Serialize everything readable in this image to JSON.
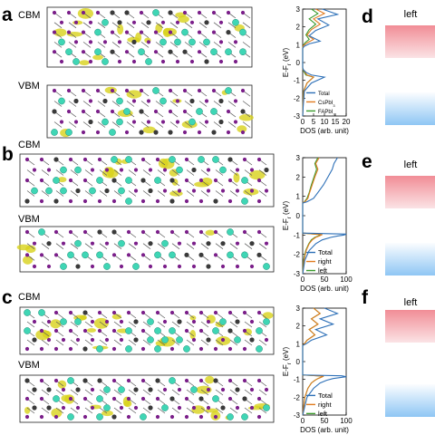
{
  "rows": [
    {
      "panel": "a",
      "cbm": "CBM",
      "vbm": "VBM",
      "right_panel": "d",
      "right_label": "left"
    },
    {
      "panel": "b",
      "cbm": "CBM",
      "vbm": "VBM",
      "right_panel": "e",
      "right_label": "left"
    },
    {
      "panel": "c",
      "cbm": "CBM",
      "vbm": "VBM",
      "right_panel": "f",
      "right_label": "left"
    }
  ],
  "colors": {
    "total": "#2c6fb7",
    "second": "#e07b1f",
    "third": "#3a9a2c",
    "iodine": "#7b1f8a",
    "lead": "#3a3a3a",
    "cs": "#3fd6b5",
    "density": "#d8d21a",
    "cbm_bar": "#f18d96",
    "vbm_bar": "#8ec6f4"
  },
  "chart_data": [
    {
      "type": "line",
      "ylabel": "E-F$_r$ (eV)",
      "xlabel": "DOS (arb. unit)",
      "xlim": [
        0,
        20
      ],
      "ylim": [
        -3,
        3
      ],
      "xticks": [
        "0",
        "5",
        "10",
        "15",
        "20"
      ],
      "yticks": [
        "-3",
        "-2",
        "-1",
        "0",
        "1",
        "2",
        "3"
      ],
      "legend_position": "center-right",
      "series": [
        {
          "name": "Total",
          "color_key": "total",
          "x": [
            0,
            0.2,
            0.8,
            4,
            10,
            4,
            1.5,
            0.3,
            0,
            0,
            0.6,
            3,
            8,
            3,
            6,
            12,
            7,
            16,
            9
          ],
          "y": [
            -3,
            -2.5,
            -1.6,
            -1.15,
            -0.82,
            -0.7,
            -0.55,
            -0.4,
            -0.3,
            0.8,
            0.9,
            1.05,
            1.2,
            1.5,
            1.8,
            2.1,
            2.45,
            2.7,
            3
          ]
        },
        {
          "name": "CsPbI$_3$",
          "color_key": "second",
          "x": [
            0,
            0.1,
            0.5,
            2,
            5,
            2,
            0.8,
            0,
            0,
            0.3,
            2,
            5,
            2,
            4,
            8,
            5,
            10,
            6
          ],
          "y": [
            -3,
            -2.4,
            -1.6,
            -1.15,
            -0.82,
            -0.7,
            -0.5,
            -0.35,
            0.8,
            0.95,
            1.1,
            1.3,
            1.55,
            1.85,
            2.15,
            2.45,
            2.75,
            3
          ]
        },
        {
          "name": "FAPbI$_3$",
          "color_key": "third",
          "x": [
            0,
            0.1,
            0.4,
            2,
            5,
            1.5,
            0.5,
            0,
            0,
            0.2,
            1,
            3,
            1.5,
            3,
            6,
            3,
            7,
            4
          ],
          "y": [
            -3,
            -2.4,
            -1.6,
            -1.15,
            -0.82,
            -0.7,
            -0.5,
            -0.35,
            0.8,
            0.95,
            1.1,
            1.3,
            1.55,
            1.85,
            2.15,
            2.45,
            2.75,
            3
          ]
        }
      ]
    },
    {
      "type": "line",
      "ylabel": "E-F$_r$ (eV)",
      "xlabel": "DOS (arb. unit)",
      "xlim": [
        0,
        100
      ],
      "ylim": [
        -3,
        3
      ],
      "xticks": [
        "0",
        "50",
        "100"
      ],
      "yticks": [
        "-3",
        "-2",
        "-1",
        "0",
        "1",
        "2",
        "3"
      ],
      "legend_position": "lower-right",
      "series": [
        {
          "name": "Total",
          "color_key": "total",
          "x": [
            0,
            5,
            15,
            30,
            45,
            65,
            80,
            95,
            100,
            0,
            0,
            10,
            25,
            35,
            48,
            58,
            68,
            72,
            80
          ],
          "y": [
            -3,
            -2.3,
            -1.8,
            -1.45,
            -1.25,
            -1.12,
            -1.05,
            -1.0,
            -0.95,
            -0.9,
            0.65,
            0.72,
            0.9,
            1.2,
            1.6,
            2.0,
            2.4,
            2.7,
            3.0
          ]
        },
        {
          "name": "right",
          "color_key": "second",
          "x": [
            0,
            3,
            8,
            15,
            22,
            30,
            38,
            45,
            0,
            0,
            5,
            12,
            16,
            22,
            28,
            35,
            30,
            38
          ],
          "y": [
            -3,
            -2.3,
            -1.8,
            -1.45,
            -1.25,
            -1.12,
            -1.05,
            -0.98,
            -0.9,
            0.65,
            0.72,
            0.9,
            1.2,
            1.6,
            2.0,
            2.4,
            2.7,
            3.0
          ]
        },
        {
          "name": "left",
          "color_key": "third",
          "x": [
            0,
            2,
            7,
            14,
            20,
            28,
            36,
            42,
            0,
            0,
            4,
            10,
            15,
            20,
            26,
            32,
            28,
            35
          ],
          "y": [
            -3,
            -2.3,
            -1.8,
            -1.45,
            -1.25,
            -1.12,
            -1.05,
            -0.98,
            -0.9,
            0.65,
            0.72,
            0.9,
            1.2,
            1.6,
            2.0,
            2.4,
            2.7,
            3.0
          ]
        }
      ]
    },
    {
      "type": "line",
      "ylabel": "E-F$_r$ (eV)",
      "xlabel": "DOS (arb. unit)",
      "xlim": [
        0,
        100
      ],
      "ylim": [
        -3,
        3
      ],
      "xticks": [
        "0",
        "50",
        "100"
      ],
      "yticks": [
        "-3",
        "-2",
        "-1",
        "0",
        "1",
        "2",
        "3"
      ],
      "legend_position": "lower-right",
      "series": [
        {
          "name": "Total",
          "color_key": "total",
          "x": [
            0,
            10,
            25,
            40,
            55,
            70,
            85,
            100,
            90,
            0,
            0,
            8,
            20,
            55,
            30,
            70,
            40,
            80,
            50
          ],
          "y": [
            -3,
            -2.0,
            -1.5,
            -1.2,
            -1.05,
            -0.95,
            -0.9,
            -0.85,
            -0.8,
            -0.75,
            0.9,
            1.0,
            1.2,
            1.5,
            1.8,
            2.1,
            2.4,
            2.7,
            3.0
          ]
        },
        {
          "name": "right",
          "color_key": "second",
          "x": [
            0,
            5,
            12,
            20,
            28,
            35,
            42,
            48,
            0,
            0,
            4,
            10,
            28,
            15,
            35,
            20,
            40,
            25
          ],
          "y": [
            -3,
            -2.0,
            -1.5,
            -1.2,
            -1.05,
            -0.95,
            -0.88,
            -0.82,
            -0.75,
            0.9,
            1.0,
            1.2,
            1.5,
            1.8,
            2.1,
            2.4,
            2.7,
            3.0
          ]
        },
        {
          "name": "left",
          "color_key": "third",
          "x": [
            0,
            5,
            12,
            20,
            28,
            35,
            42,
            48,
            0,
            0,
            4,
            10,
            28,
            15,
            35,
            20,
            40,
            25
          ],
          "y": [
            -3,
            -2.0,
            -1.5,
            -1.2,
            -1.05,
            -0.95,
            -0.88,
            -0.82,
            -0.75,
            0.9,
            1.0,
            1.2,
            1.5,
            1.8,
            2.1,
            2.4,
            2.7,
            3.0
          ]
        }
      ]
    }
  ]
}
